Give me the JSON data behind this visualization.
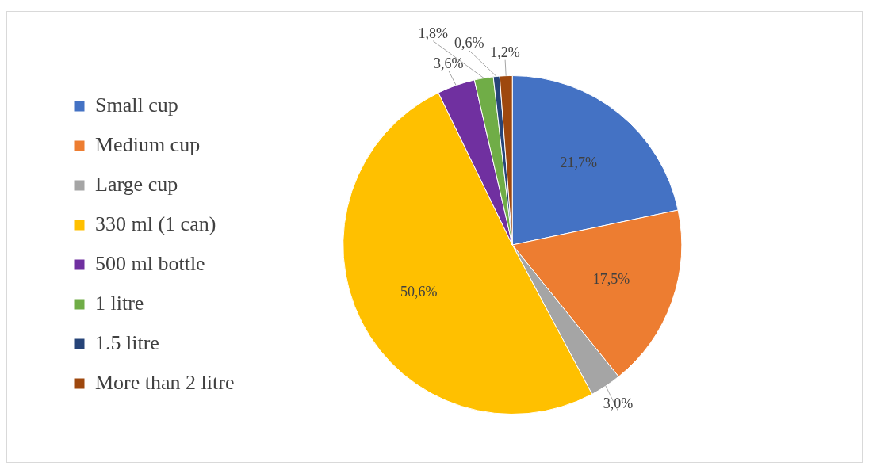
{
  "chart_data": {
    "type": "pie",
    "categories": [
      "Small cup",
      "Medium cup",
      "Large cup",
      "330 ml (1 can)",
      "500 ml bottle",
      "1 litre",
      "1.5 litre",
      "More than 2 litre"
    ],
    "values": [
      21.7,
      17.5,
      3.0,
      50.6,
      3.6,
      1.8,
      0.6,
      1.2
    ],
    "colors": [
      "#4472c4",
      "#ed7d31",
      "#a5a5a5",
      "#ffc000",
      "#7030a0",
      "#70ad47",
      "#264478",
      "#9e480e"
    ],
    "value_labels": [
      "21,7%",
      "17,5%",
      "3,0%",
      "50,6%",
      "3,6%",
      "1,8%",
      "0,6%",
      "1,2%"
    ],
    "legend": "left"
  }
}
